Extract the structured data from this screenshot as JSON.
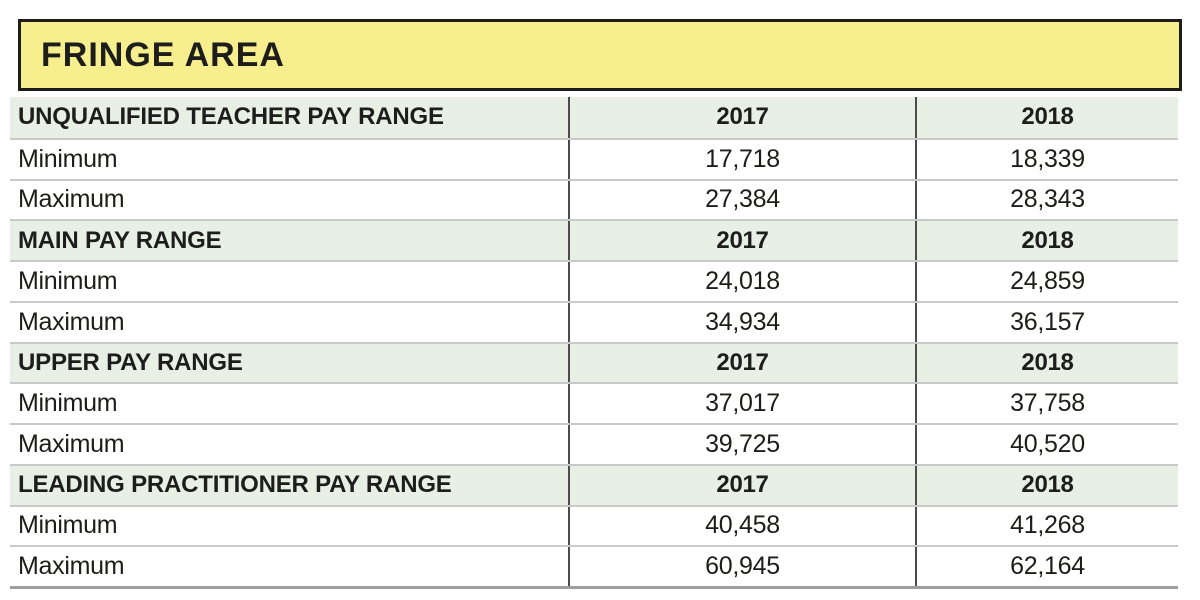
{
  "banner": {
    "title": "FRINGE AREA"
  },
  "colors": {
    "banner_bg": "#f7ee8e",
    "section_bg": "#e8f0e5",
    "border_dark": "#1d1d1b",
    "divider": "#4b4b4b",
    "row_line": "#c9c9c9",
    "bottom_line": "#9e9e9e",
    "text": "#1d1d1b"
  },
  "table": {
    "years": [
      "2017",
      "2018"
    ],
    "sections": [
      {
        "title": "UNQUALIFIED TEACHER PAY RANGE",
        "rows": [
          {
            "label": "Minimum",
            "values": [
              "17,718",
              "18,339"
            ]
          },
          {
            "label": "Maximum",
            "values": [
              "27,384",
              "28,343"
            ]
          }
        ]
      },
      {
        "title": "MAIN PAY RANGE",
        "rows": [
          {
            "label": "Minimum",
            "values": [
              "24,018",
              "24,859"
            ]
          },
          {
            "label": "Maximum",
            "values": [
              "34,934",
              "36,157"
            ]
          }
        ]
      },
      {
        "title": "UPPER PAY RANGE",
        "rows": [
          {
            "label": "Minimum",
            "values": [
              "37,017",
              "37,758"
            ]
          },
          {
            "label": "Maximum",
            "values": [
              "39,725",
              "40,520"
            ]
          }
        ]
      },
      {
        "title": "LEADING PRACTITIONER PAY RANGE",
        "rows": [
          {
            "label": "Minimum",
            "values": [
              "40,458",
              "41,268"
            ]
          },
          {
            "label": "Maximum",
            "values": [
              "60,945",
              "62,164"
            ]
          }
        ]
      }
    ]
  },
  "chart_data": {
    "type": "table",
    "title": "FRINGE AREA",
    "columns": [
      "Pay range",
      "2017",
      "2018"
    ],
    "rows": [
      {
        "section": "UNQUALIFIED TEACHER PAY RANGE",
        "measure": "Minimum",
        "2017": 17718,
        "2018": 18339
      },
      {
        "section": "UNQUALIFIED TEACHER PAY RANGE",
        "measure": "Maximum",
        "2017": 27384,
        "2018": 28343
      },
      {
        "section": "MAIN PAY RANGE",
        "measure": "Minimum",
        "2017": 24018,
        "2018": 24859
      },
      {
        "section": "MAIN PAY RANGE",
        "measure": "Maximum",
        "2017": 34934,
        "2018": 36157
      },
      {
        "section": "UPPER PAY RANGE",
        "measure": "Minimum",
        "2017": 37017,
        "2018": 37758
      },
      {
        "section": "UPPER PAY RANGE",
        "measure": "Maximum",
        "2017": 39725,
        "2018": 40520
      },
      {
        "section": "LEADING PRACTITIONER PAY RANGE",
        "measure": "Minimum",
        "2017": 40458,
        "2018": 41268
      },
      {
        "section": "LEADING PRACTITIONER PAY RANGE",
        "measure": "Maximum",
        "2017": 60945,
        "2018": 62164
      }
    ],
    "layout": {
      "section_header_rows_repeat_year_labels": true,
      "grid": "horizontal row lines + two vertical column dividers"
    }
  }
}
